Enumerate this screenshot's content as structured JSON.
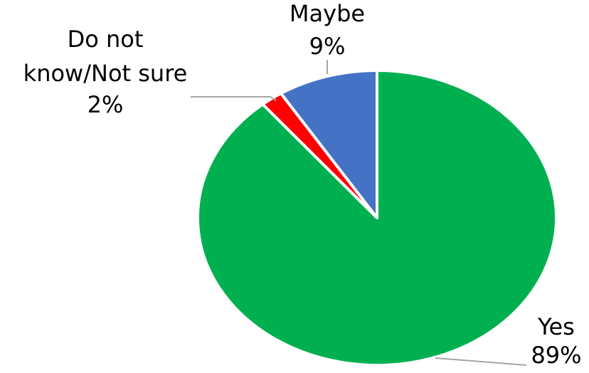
{
  "chart_data": {
    "type": "pie",
    "title": "",
    "start_angle_deg": 0,
    "direction": "clockwise",
    "slices": [
      {
        "label": "Yes",
        "value": 89,
        "value_label": "89%",
        "color": "#00b050"
      },
      {
        "label": "Do not know/Not sure",
        "label_lines": [
          "Do not",
          "know/Not sure"
        ],
        "value": 2,
        "value_label": "2%",
        "color": "#ff0000"
      },
      {
        "label": "Maybe",
        "value": 9,
        "value_label": "9%",
        "color": "#4472c4"
      }
    ],
    "legend": "none",
    "label_position": "outside-with-leader-lines"
  }
}
